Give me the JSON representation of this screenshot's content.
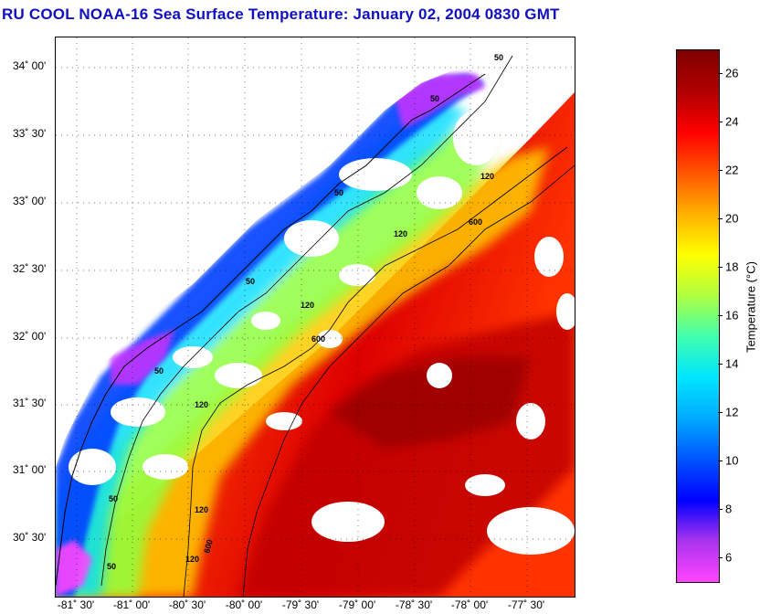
{
  "title": "RU COOL  NOAA-16  Sea Surface Temperature:  January 02, 2004 0830 GMT",
  "map": {
    "lat_labels": [
      "34˚ 00'",
      "33˚ 30'",
      "33˚ 00'",
      "32˚ 30'",
      "32˚ 00'",
      "31˚ 30'",
      "31˚ 00'",
      "30˚ 30'"
    ],
    "lon_labels": [
      "-81˚ 30'",
      "-81˚ 00'",
      "-80˚ 30'",
      "-80˚ 00'",
      "-79˚ 30'",
      "-79˚ 00'",
      "-78˚ 30'",
      "-78˚ 00'",
      "-77˚ 30'"
    ],
    "isobath_labels": [
      "50",
      "50",
      "50",
      "50",
      "50",
      "50",
      "50",
      "120",
      "120",
      "120",
      "120",
      "120",
      "120",
      "600",
      "600",
      "600"
    ],
    "cloud_color": "#ffffff",
    "land_color": "#ffffff"
  },
  "colorbar": {
    "label": "Temperature (°C)",
    "ticks": [
      "26",
      "24",
      "22",
      "20",
      "18",
      "16",
      "14",
      "12",
      "10",
      "8",
      "6"
    ],
    "min": 5,
    "max": 27,
    "colors": [
      "#ff44ff",
      "#aa33ee",
      "#0000ff",
      "#0055ff",
      "#00aaff",
      "#00e5ff",
      "#40ffb0",
      "#b0ff40",
      "#ffff00",
      "#ffb000",
      "#ff5500",
      "#ff0000",
      "#b00000",
      "#800000"
    ]
  }
}
